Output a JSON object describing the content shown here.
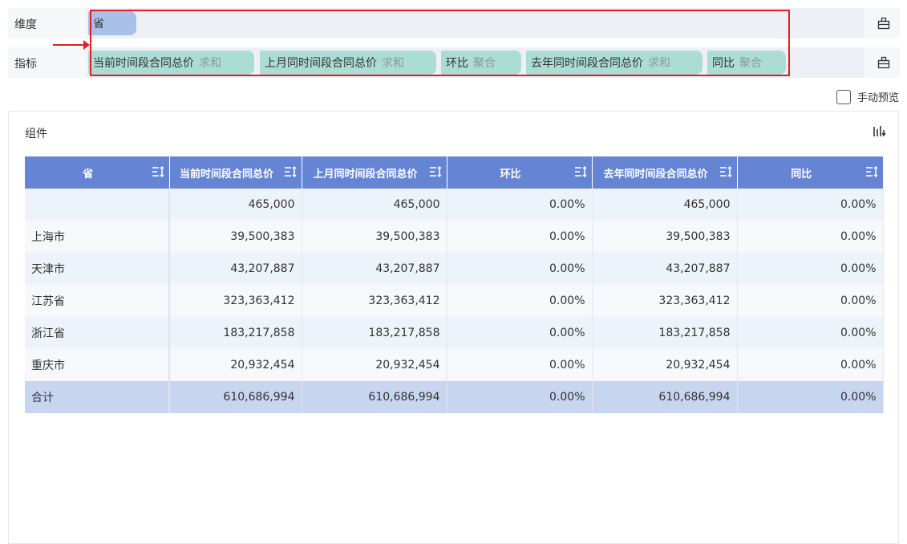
{
  "dimension_row": {
    "label": "维度",
    "fields": [
      {
        "name": "省"
      }
    ]
  },
  "indicator_row": {
    "label": "指标",
    "fields": [
      {
        "name": "当前时间段合同总价",
        "agg": "求和"
      },
      {
        "name": "上月同时间段合同总价",
        "agg": "求和"
      },
      {
        "name": "环比",
        "agg": "聚合"
      },
      {
        "name": "去年同时间段合同总价",
        "agg": "求和"
      },
      {
        "name": "同比",
        "agg": "聚合"
      }
    ]
  },
  "preview": {
    "label": "手动预览",
    "checked": false
  },
  "component": {
    "title": "组件"
  },
  "table": {
    "headers": [
      "省",
      "当前时间段合同总价",
      "上月同时间段合同总价",
      "环比",
      "去年同时间段合同总价",
      "同比"
    ],
    "rows": [
      [
        "",
        "465,000",
        "465,000",
        "0.00%",
        "465,000",
        "0.00%"
      ],
      [
        "上海市",
        "39,500,383",
        "39,500,383",
        "0.00%",
        "39,500,383",
        "0.00%"
      ],
      [
        "天津市",
        "43,207,887",
        "43,207,887",
        "0.00%",
        "43,207,887",
        "0.00%"
      ],
      [
        "江苏省",
        "323,363,412",
        "323,363,412",
        "0.00%",
        "323,363,412",
        "0.00%"
      ],
      [
        "浙江省",
        "183,217,858",
        "183,217,858",
        "0.00%",
        "183,217,858",
        "0.00%"
      ],
      [
        "重庆市",
        "20,932,454",
        "20,932,454",
        "0.00%",
        "20,932,454",
        "0.00%"
      ]
    ],
    "total": [
      "合计",
      "610,686,994",
      "610,686,994",
      "0.00%",
      "610,686,994",
      "0.00%"
    ]
  },
  "colors": {
    "header": "#6585d4",
    "dimension_pill": "#a9c1e8",
    "indicator_pill": "#abdcd6",
    "highlight": "#e02020"
  },
  "icons": [
    "settings-icon",
    "sort-icon",
    "chart-type-icon",
    "arrow-annotation"
  ]
}
